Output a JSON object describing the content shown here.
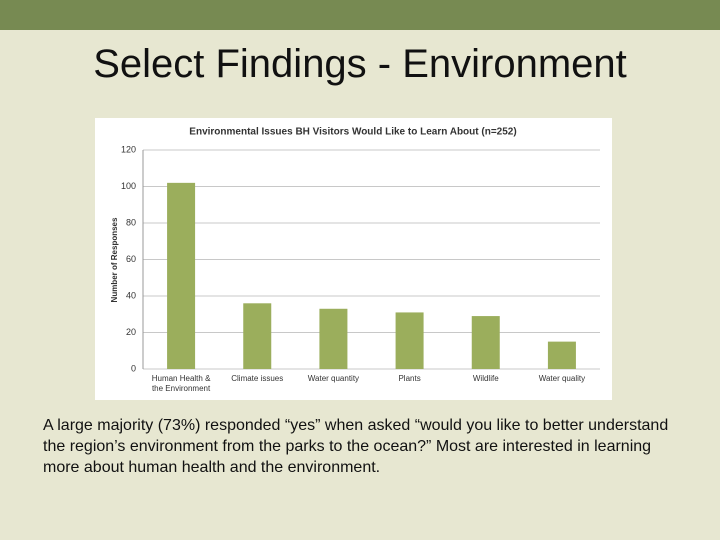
{
  "slide_title": "Select Findings - Environment",
  "chart_data": {
    "type": "bar",
    "title": "Environmental Issues BH Visitors Would Like to Learn About (n=252)",
    "y_label": "Number of Responses",
    "categories": [
      "Human Health & the Environment",
      "Climate issues",
      "Water quantity",
      "Plants",
      "Wildlife",
      "Water quality"
    ],
    "values": [
      102,
      36,
      33,
      31,
      29,
      15
    ],
    "color": "#9bae5c",
    "ylim": [
      0,
      120
    ],
    "yticks": [
      0,
      20,
      40,
      60,
      80,
      100,
      120
    ],
    "grid": true
  },
  "body_text": "A large majority (73%) responded “yes” when asked “would you like to better understand the region’s environment from the parks to the ocean?” Most are interested in learning more about human health and the environment."
}
